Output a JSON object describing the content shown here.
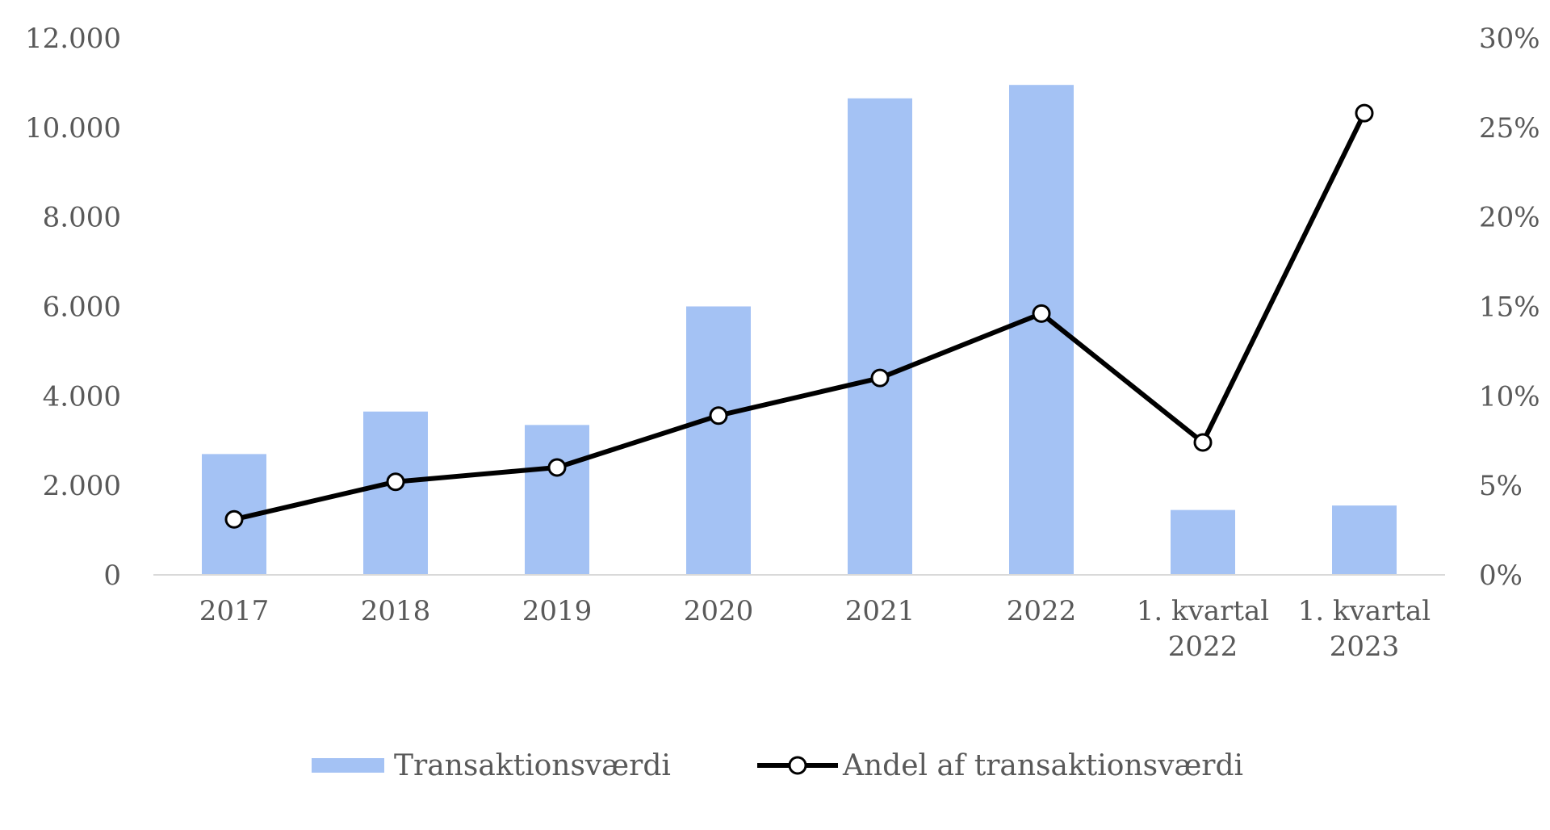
{
  "chart_data": {
    "type": "bar",
    "categories": [
      "2017",
      "2018",
      "2019",
      "2020",
      "2021",
      "2022",
      "1. kvartal 2022",
      "1. kvartal 2023"
    ],
    "category_lines": [
      [
        "2017"
      ],
      [
        "2018"
      ],
      [
        "2019"
      ],
      [
        "2020"
      ],
      [
        "2021"
      ],
      [
        "2022"
      ],
      [
        "1. kvartal",
        "2022"
      ],
      [
        "1. kvartal",
        "2023"
      ]
    ],
    "series": [
      {
        "name": "Transaktionsværdi",
        "type": "bar",
        "axis": "left",
        "color": "#a4c2f4",
        "values": [
          2700,
          3650,
          3350,
          6000,
          10650,
          10950,
          1450,
          1550
        ]
      },
      {
        "name": "Andel af transaktionsværdi",
        "type": "line",
        "axis": "right",
        "color": "#000000",
        "values": [
          3.1,
          5.2,
          6.0,
          8.9,
          11.0,
          14.6,
          7.4,
          25.8
        ]
      }
    ],
    "left_axis": {
      "ylim": [
        0,
        12000
      ],
      "ticks": [
        0,
        2000,
        4000,
        6000,
        8000,
        10000,
        12000
      ],
      "tick_labels": [
        "0",
        "2.000",
        "4.000",
        "6.000",
        "8.000",
        "10.000",
        "12.000"
      ]
    },
    "right_axis": {
      "ylim": [
        0,
        30
      ],
      "ticks": [
        0,
        5,
        10,
        15,
        20,
        25,
        30
      ],
      "tick_labels": [
        "0%",
        "5%",
        "10%",
        "15%",
        "20%",
        "25%",
        "30%"
      ]
    },
    "grid": false,
    "legend_position": "bottom",
    "title": "",
    "xlabel": "",
    "ylabel": ""
  }
}
